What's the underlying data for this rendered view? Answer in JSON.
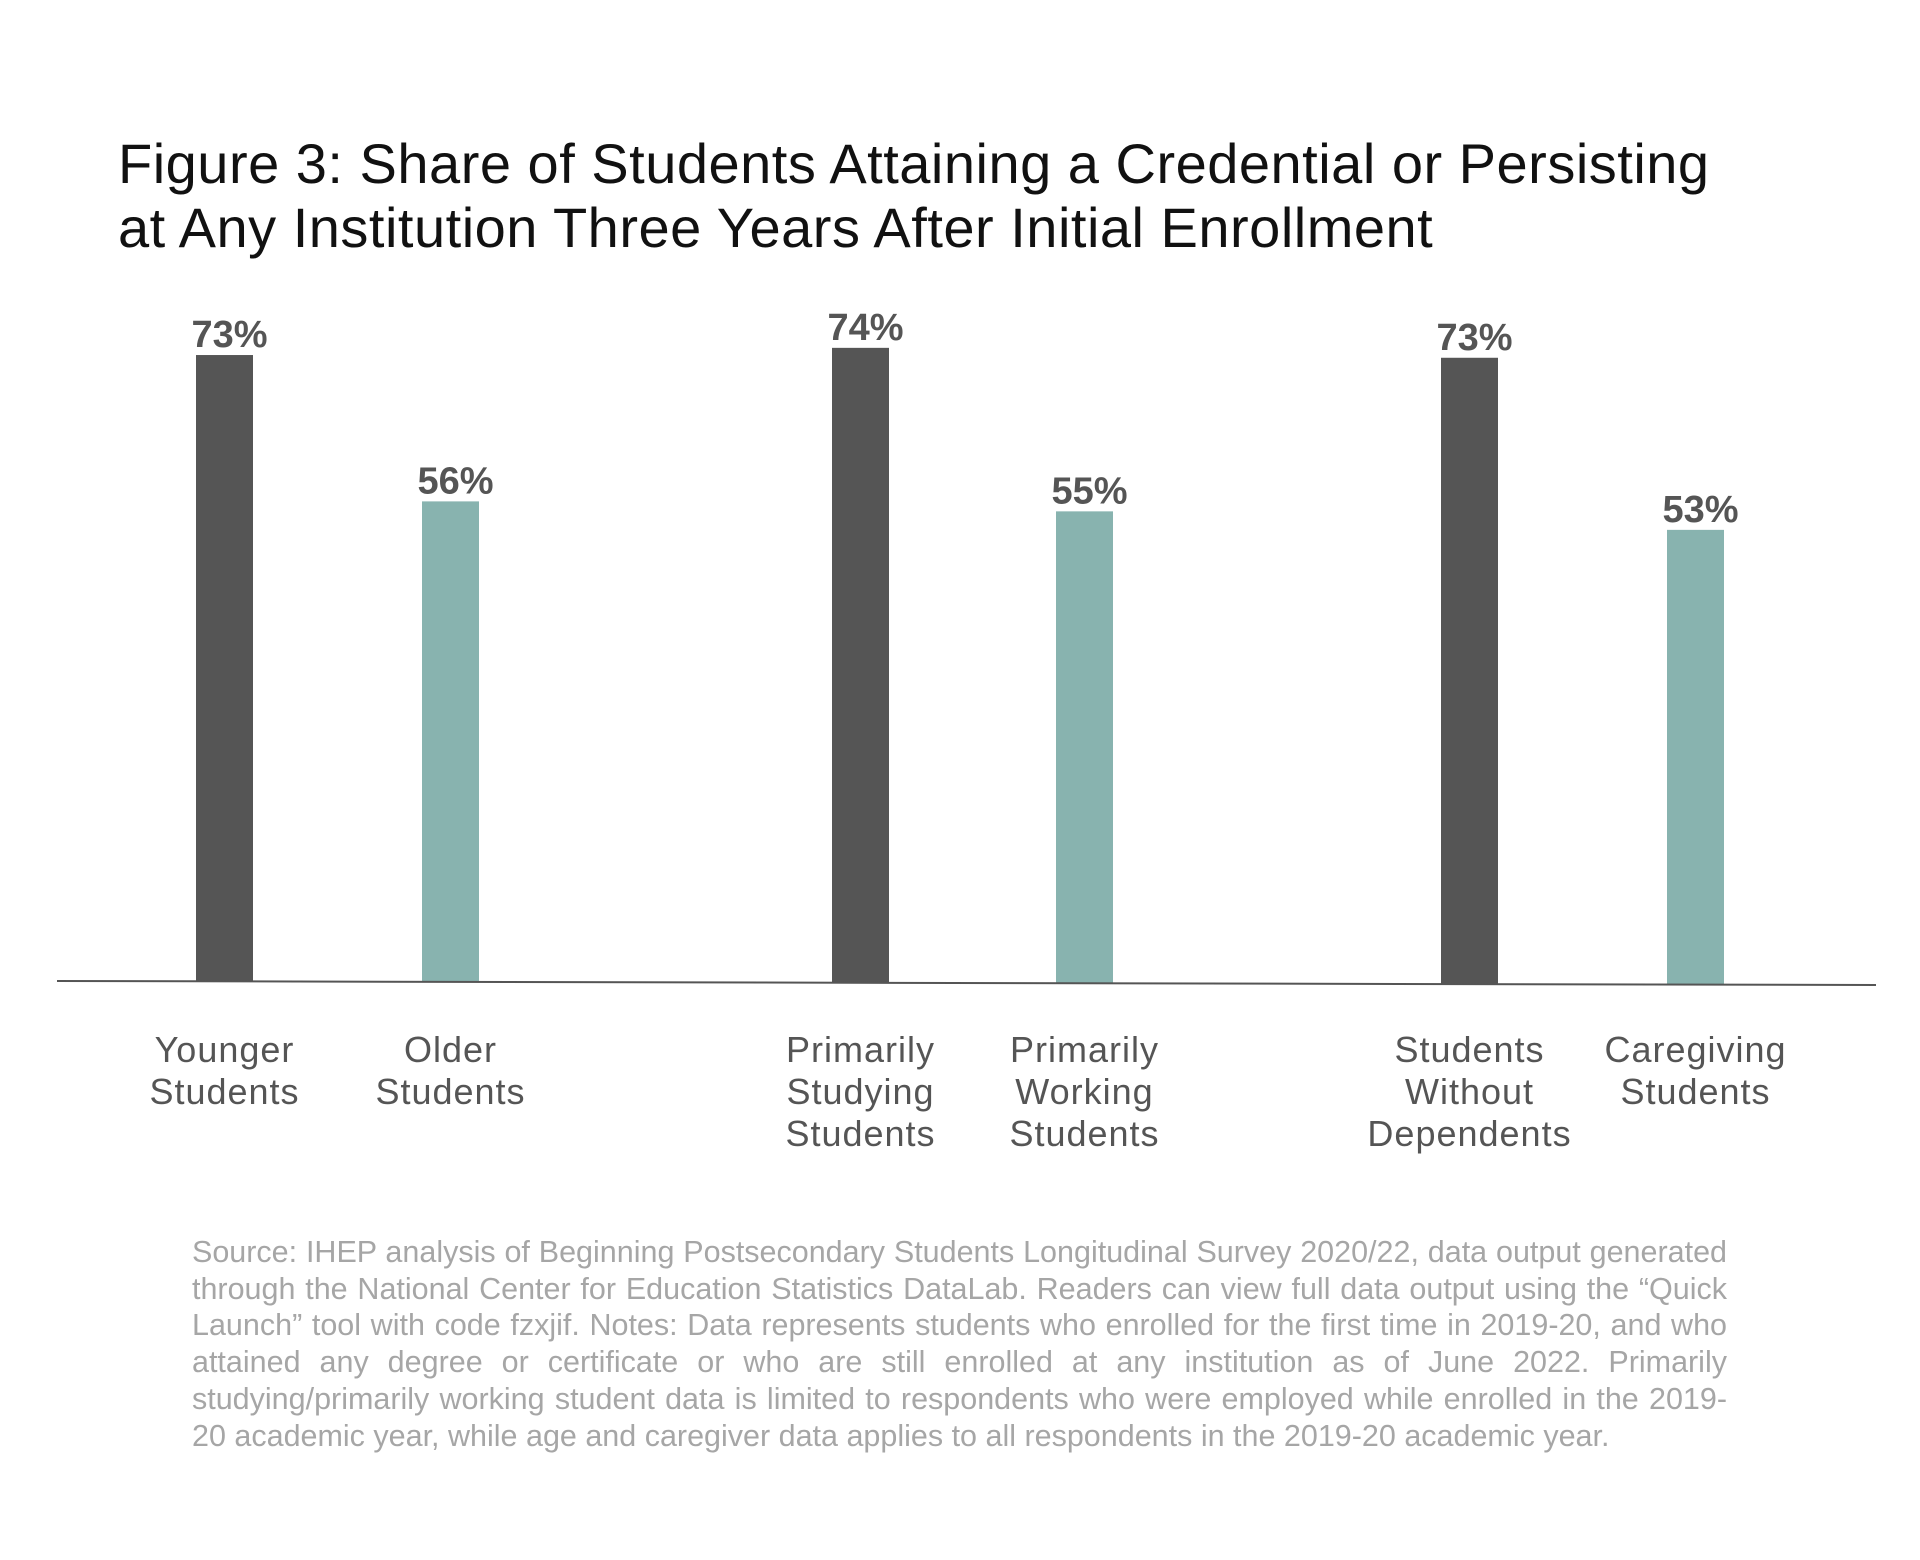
{
  "figure": {
    "title_lines": [
      "Figure 3: Share of Students Attaining a Credential or Persisting",
      "at Any Institution Three Years After Initial Enrollment"
    ],
    "footnote": "Source: IHEP analysis of Beginning Postsecondary Students Longitudinal Survey 2020/22, data output generated through the National Center for Education Statistics DataLab. Readers can view full data output using the “Quick Launch” tool with code fzxjif. Notes: Data represents students who enrolled for the first time in 2019-20, and who attained any degree or certificate or who are still enrolled at any institution as of June 2022. Primarily studying/primarily working student data is limited to respondents who were employed while enrolled in the 2019-20 academic year, while age and caregiver data applies to all respondents in the 2019-20 academic year."
  },
  "colors": {
    "comparison_bar": "#555555",
    "focus_bar": "#88b3af",
    "label_text": "#555555",
    "axis": "#555555"
  },
  "chart_data": {
    "type": "bar",
    "title": "Figure 3: Share of Students Attaining a Credential or Persisting at Any Institution Three Years After Initial Enrollment",
    "xlabel": "",
    "ylabel": "",
    "ylim": [
      0,
      100
    ],
    "grid": false,
    "legend": "none",
    "groups": [
      {
        "bars": [
          {
            "category": "Younger Students",
            "label_lines": [
              "Younger",
              "Students"
            ],
            "value": 73,
            "value_label": "73%",
            "style": "comparison"
          },
          {
            "category": "Older Students",
            "label_lines": [
              "Older",
              "Students"
            ],
            "value": 56,
            "value_label": "56%",
            "style": "focus"
          }
        ]
      },
      {
        "bars": [
          {
            "category": "Primarily Studying Students",
            "label_lines": [
              "Primarily",
              "Studying",
              "Students"
            ],
            "value": 74,
            "value_label": "74%",
            "style": "comparison"
          },
          {
            "category": "Primarily Working Students",
            "label_lines": [
              "Primarily",
              "Working",
              "Students"
            ],
            "value": 55,
            "value_label": "55%",
            "style": "focus"
          }
        ]
      },
      {
        "bars": [
          {
            "category": "Students Without Dependents",
            "label_lines": [
              "Students",
              "Without",
              "Dependents"
            ],
            "value": 73,
            "value_label": "73%",
            "style": "comparison"
          },
          {
            "category": "Caregiving Students",
            "label_lines": [
              "Caregiving",
              "Students"
            ],
            "value": 53,
            "value_label": "53%",
            "style": "focus"
          }
        ]
      }
    ]
  }
}
